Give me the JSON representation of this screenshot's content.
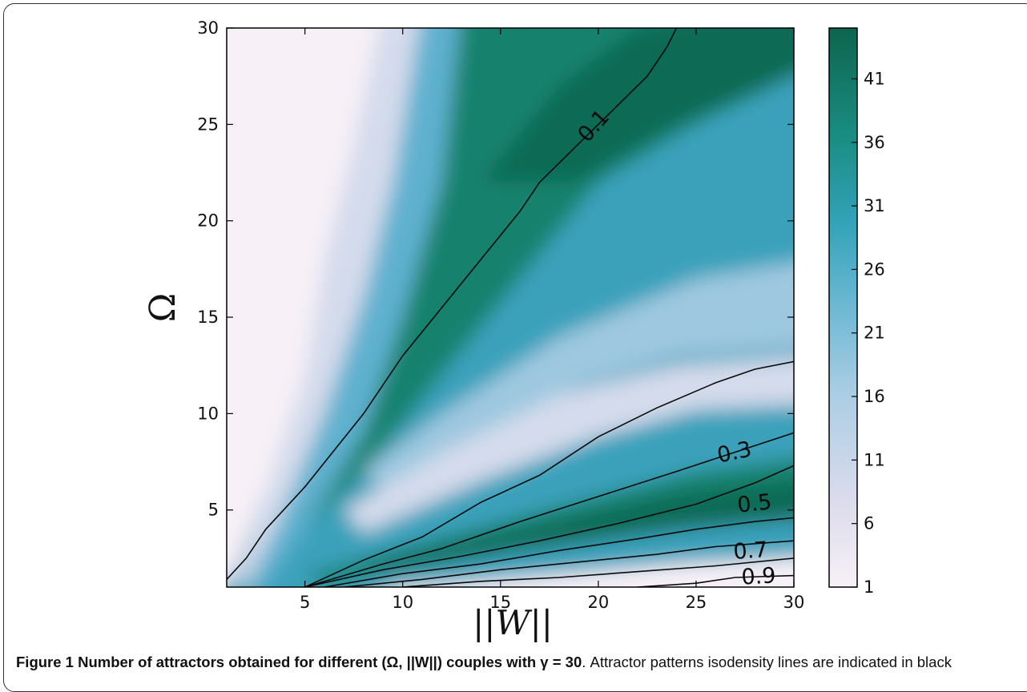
{
  "chart_data": {
    "type": "heatmap",
    "xlabel": "||W||",
    "ylabel": "Ω",
    "xlim": [
      1,
      30
    ],
    "ylim": [
      1,
      30
    ],
    "x_ticks": [
      5,
      10,
      15,
      20,
      25,
      30
    ],
    "y_ticks": [
      5,
      10,
      15,
      20,
      25,
      30
    ],
    "colorbar": {
      "range": [
        1,
        45
      ],
      "ticks": [
        1,
        6,
        11,
        16,
        21,
        26,
        31,
        36,
        41
      ],
      "colors": [
        "#f7f0f7",
        "#d4dbec",
        "#9ec8e0",
        "#5fb1cf",
        "#3aa1bb",
        "#1f9490",
        "#15826e",
        "#0f6b55"
      ]
    },
    "regions": [
      {
        "value": 5,
        "x": [
          1,
          30
        ],
        "upper_Omega_at_x": [
          [
            1,
            30
          ],
          [
            6,
            30
          ],
          [
            8,
            30
          ]
        ]
      },
      {
        "value": 40,
        "description_ridge": "band between Omega ~ 0.55*||W|| and top"
      }
    ],
    "contours": [
      {
        "label": "0.1",
        "points": [
          [
            1,
            1.4
          ],
          [
            2,
            2.5
          ],
          [
            3,
            4.0
          ],
          [
            5,
            6.2
          ],
          [
            8,
            10.0
          ],
          [
            10,
            13.0
          ],
          [
            12,
            15.5
          ],
          [
            14,
            18.0
          ],
          [
            16,
            20.5
          ],
          [
            17,
            22.0
          ],
          [
            19,
            24.0
          ],
          [
            21,
            26.0
          ],
          [
            22.5,
            27.5
          ],
          [
            23.5,
            29.0
          ],
          [
            24,
            30
          ]
        ]
      },
      {
        "label": "0.3",
        "points": [
          [
            5,
            1.0
          ],
          [
            8,
            2.4
          ],
          [
            11,
            3.6
          ],
          [
            14,
            5.4
          ],
          [
            17,
            6.8
          ],
          [
            20,
            8.8
          ],
          [
            23,
            10.3
          ],
          [
            26,
            11.6
          ],
          [
            28,
            12.3
          ],
          [
            30,
            12.7
          ]
        ]
      },
      {
        "label": "",
        "points": [
          [
            5,
            1.0
          ],
          [
            9,
            2.2
          ],
          [
            12,
            3.0
          ],
          [
            16,
            4.4
          ],
          [
            20,
            5.7
          ],
          [
            24,
            7.0
          ],
          [
            27,
            8.0
          ],
          [
            30,
            9.0
          ]
        ]
      },
      {
        "label": "",
        "points": [
          [
            5,
            1.0
          ],
          [
            9,
            1.9
          ],
          [
            13,
            2.6
          ],
          [
            17,
            3.4
          ],
          [
            21,
            4.3
          ],
          [
            25,
            5.3
          ],
          [
            28,
            6.4
          ],
          [
            30,
            7.3
          ]
        ]
      },
      {
        "label": "0.5",
        "points": [
          [
            6,
            1.0
          ],
          [
            10,
            1.7
          ],
          [
            14,
            2.2
          ],
          [
            18,
            2.9
          ],
          [
            22,
            3.5
          ],
          [
            25,
            4.0
          ],
          [
            28,
            4.4
          ],
          [
            30,
            4.6
          ]
        ]
      },
      {
        "label": "",
        "points": [
          [
            7,
            1.0
          ],
          [
            11,
            1.4
          ],
          [
            15,
            1.9
          ],
          [
            19,
            2.3
          ],
          [
            23,
            2.7
          ],
          [
            26,
            3.1
          ],
          [
            30,
            3.4
          ]
        ]
      },
      {
        "label": "0.7",
        "points": [
          [
            10,
            1.0
          ],
          [
            14,
            1.3
          ],
          [
            18,
            1.5
          ],
          [
            22,
            1.8
          ],
          [
            26,
            2.1
          ],
          [
            30,
            2.5
          ]
        ]
      },
      {
        "label": "0.9",
        "points": [
          [
            22,
            1.0
          ],
          [
            25,
            1.2
          ],
          [
            27,
            1.5
          ],
          [
            30,
            1.6
          ]
        ]
      }
    ]
  },
  "caption": {
    "bold": "Figure 1 Number of attractors obtained for different (Ω, ||W||) couples with γ = 30",
    "rest": ". Attractor patterns isodensity lines are indicated in black"
  }
}
